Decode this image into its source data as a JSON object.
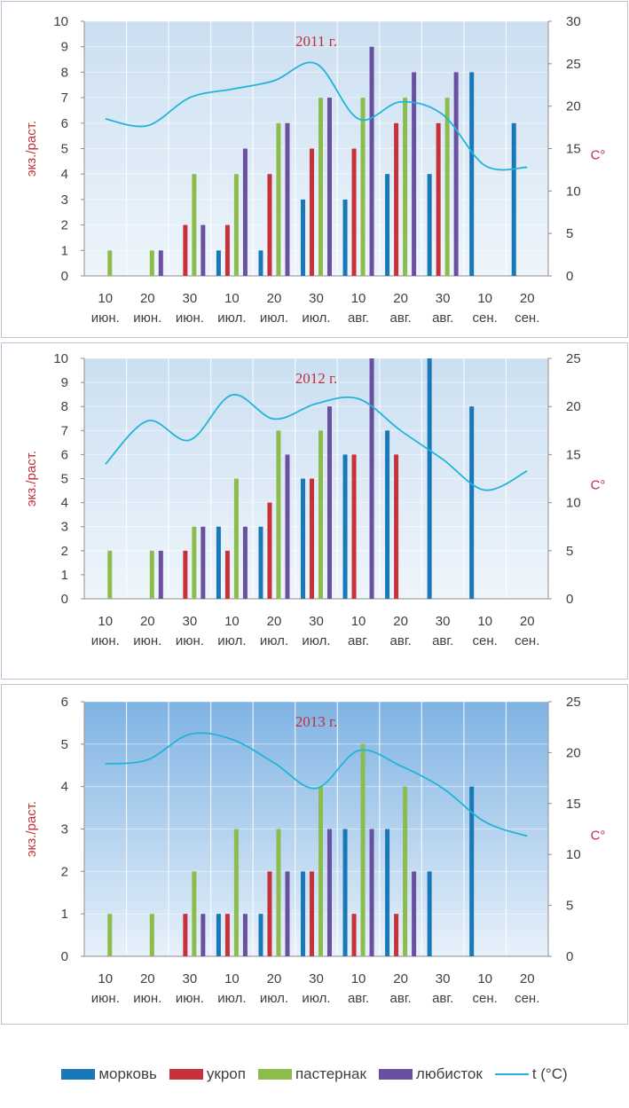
{
  "legend": {
    "items": [
      {
        "key": "carrot",
        "label": "морковь",
        "color": "#1878b8"
      },
      {
        "key": "dill",
        "label": "укроп",
        "color": "#c8303a"
      },
      {
        "key": "parsnip",
        "label": "пастернак",
        "color": "#8cbc4c"
      },
      {
        "key": "lovage",
        "label": "любисток",
        "color": "#6a50a0"
      },
      {
        "key": "temp",
        "label": "t (°C)",
        "color": "#22b4d8"
      }
    ]
  },
  "chart_data": [
    {
      "type": "bar",
      "title": "2011 г.",
      "ylabel": "экз./раст.",
      "y2label": "С°",
      "ylim": [
        0,
        10
      ],
      "y2lim": [
        0,
        30
      ],
      "yticks": [
        "0",
        "1",
        "2",
        "3",
        "4",
        "5",
        "6",
        "7",
        "8",
        "9",
        "10"
      ],
      "y2ticks": [
        "0",
        "5",
        "10",
        "15",
        "20",
        "25",
        "30"
      ],
      "categories": [
        {
          "day": "10",
          "month": "июн."
        },
        {
          "day": "20",
          "month": "июн."
        },
        {
          "day": "30",
          "month": "июн."
        },
        {
          "day": "10",
          "month": "июл."
        },
        {
          "day": "20",
          "month": "июл."
        },
        {
          "day": "30",
          "month": "июл."
        },
        {
          "day": "10",
          "month": "авг."
        },
        {
          "day": "20",
          "month": "авг."
        },
        {
          "day": "30",
          "month": "авг."
        },
        {
          "day": "10",
          "month": "сен."
        },
        {
          "day": "20",
          "month": "сен."
        }
      ],
      "series": [
        {
          "name": "морковь",
          "values": [
            0,
            0,
            0,
            1,
            1,
            3,
            3,
            4,
            4,
            8,
            6
          ]
        },
        {
          "name": "укроп",
          "values": [
            0,
            0,
            2,
            2,
            4,
            5,
            5,
            6,
            6,
            0,
            0
          ]
        },
        {
          "name": "пастернак",
          "values": [
            1,
            1,
            4,
            4,
            6,
            7,
            7,
            7,
            7,
            0,
            0
          ]
        },
        {
          "name": "любисток",
          "values": [
            0,
            1,
            2,
            5,
            6,
            7,
            9,
            8,
            8,
            0,
            0
          ]
        }
      ],
      "temperature": [
        18.5,
        17.7,
        21,
        22,
        23,
        25,
        18.5,
        20.5,
        19,
        13,
        12.8
      ]
    },
    {
      "type": "bar",
      "title": "2012 г.",
      "ylabel": "экз./раст.",
      "y2label": "С°",
      "ylim": [
        0,
        10
      ],
      "y2lim": [
        0,
        25
      ],
      "yticks": [
        "0",
        "1",
        "2",
        "3",
        "4",
        "5",
        "6",
        "7",
        "8",
        "9",
        "10"
      ],
      "y2ticks": [
        "0",
        "5",
        "10",
        "15",
        "20",
        "25"
      ],
      "categories": [
        {
          "day": "10",
          "month": "июн."
        },
        {
          "day": "20",
          "month": "июн."
        },
        {
          "day": "30",
          "month": "июн."
        },
        {
          "day": "10",
          "month": "июл."
        },
        {
          "day": "20",
          "month": "июл."
        },
        {
          "day": "30",
          "month": "июл."
        },
        {
          "day": "10",
          "month": "авг."
        },
        {
          "day": "20",
          "month": "авг."
        },
        {
          "day": "30",
          "month": "авг."
        },
        {
          "day": "10",
          "month": "сен."
        },
        {
          "day": "20",
          "month": "сен."
        }
      ],
      "series": [
        {
          "name": "морковь",
          "values": [
            0,
            0,
            0,
            3,
            3,
            5,
            6,
            7,
            10,
            8,
            0
          ]
        },
        {
          "name": "укроп",
          "values": [
            0,
            0,
            2,
            2,
            4,
            5,
            6,
            6,
            0,
            0,
            0
          ]
        },
        {
          "name": "пастернак",
          "values": [
            2,
            2,
            3,
            5,
            7,
            7,
            0,
            0,
            0,
            0,
            0
          ]
        },
        {
          "name": "любисток",
          "values": [
            0,
            2,
            3,
            3,
            6,
            8,
            10,
            0,
            0,
            0,
            0
          ]
        }
      ],
      "temperature": [
        14,
        18.5,
        16.5,
        21.2,
        18.7,
        20.3,
        20.8,
        17.5,
        14.5,
        11.3,
        13.3
      ]
    },
    {
      "type": "bar",
      "title": "2013 г.",
      "ylabel": "экз./раст.",
      "y2label": "С°",
      "ylim": [
        0,
        6
      ],
      "y2lim": [
        0,
        25
      ],
      "yticks": [
        "0",
        "1",
        "2",
        "3",
        "4",
        "5",
        "6"
      ],
      "y2ticks": [
        "0",
        "5",
        "10",
        "15",
        "20",
        "25"
      ],
      "categories": [
        {
          "day": "10",
          "month": "июн."
        },
        {
          "day": "20",
          "month": "июн."
        },
        {
          "day": "30",
          "month": "июн."
        },
        {
          "day": "10",
          "month": "июл."
        },
        {
          "day": "20",
          "month": "июл."
        },
        {
          "day": "30",
          "month": "июл."
        },
        {
          "day": "10",
          "month": "авг."
        },
        {
          "day": "20",
          "month": "авг."
        },
        {
          "day": "30",
          "month": "авг."
        },
        {
          "day": "10",
          "month": "сен."
        },
        {
          "day": "20",
          "month": "сен."
        }
      ],
      "series": [
        {
          "name": "морковь",
          "values": [
            0,
            0,
            0,
            1,
            1,
            2,
            3,
            3,
            2,
            4,
            0
          ]
        },
        {
          "name": "укроп",
          "values": [
            0,
            0,
            1,
            1,
            2,
            2,
            1,
            1,
            0,
            0,
            0
          ]
        },
        {
          "name": "пастернак",
          "values": [
            1,
            1,
            2,
            3,
            3,
            4,
            5,
            4,
            0,
            0,
            0
          ]
        },
        {
          "name": "любисток",
          "values": [
            0,
            0,
            1,
            1,
            2,
            3,
            3,
            2,
            0,
            0,
            0
          ]
        }
      ],
      "temperature": [
        18.9,
        19.3,
        21.8,
        21.3,
        19,
        16.5,
        20.2,
        18.7,
        16.5,
        13.2,
        11.8
      ]
    }
  ]
}
